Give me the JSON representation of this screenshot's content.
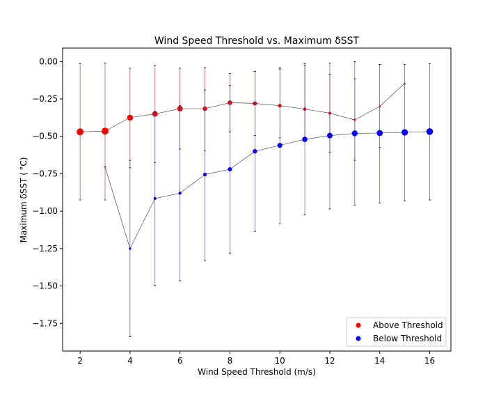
{
  "chart_data": {
    "type": "scatter",
    "title": "Wind Speed Threshold vs. Maximum δSST",
    "xlabel": "Wind Speed Threshold (m/s)",
    "ylabel": "Maximum δSST ( °C)",
    "xlim": [
      1.3,
      16.85
    ],
    "ylim": [
      -1.935,
      0.09
    ],
    "xticks": [
      2,
      4,
      6,
      8,
      10,
      12,
      14,
      16
    ],
    "yticks": [
      0.0,
      -0.25,
      -0.5,
      -0.75,
      -1.0,
      -1.25,
      -1.5,
      -1.75
    ],
    "xtick_labels": [
      "2",
      "4",
      "6",
      "8",
      "10",
      "12",
      "14",
      "16"
    ],
    "ytick_labels": [
      "0.00",
      "−0.25",
      "−0.50",
      "−0.75",
      "−1.00",
      "−1.25",
      "−1.50",
      "−1.75"
    ],
    "grid": false,
    "legend_position": "lower-right",
    "series": [
      {
        "name": "Above Threshold",
        "color": "#ff0000",
        "errorbar_color": "#b02020",
        "x": [
          2,
          3,
          4,
          5,
          6,
          7,
          8,
          9,
          10,
          11,
          12,
          13,
          14,
          15
        ],
        "y": [
          -0.47,
          -0.465,
          -0.375,
          -0.35,
          -0.315,
          -0.315,
          -0.275,
          -0.28,
          -0.295,
          -0.318,
          -0.345,
          -0.39,
          -0.3,
          -0.145
        ],
        "err_low": [
          -0.925,
          -0.925,
          -0.71,
          -0.675,
          -0.585,
          -0.595,
          -0.47,
          -0.495,
          -0.51,
          -0.525,
          -0.605,
          -0.66,
          -0.575,
          -0.15
        ],
        "err_high": [
          -0.015,
          -0.01,
          -0.045,
          -0.025,
          -0.045,
          -0.04,
          -0.08,
          -0.065,
          -0.05,
          -0.025,
          -0.085,
          -0.115,
          -0.02,
          -0.15
        ],
        "marker_size": [
          5,
          5,
          4.2,
          4,
          4,
          3.3,
          3.3,
          3,
          2.6,
          2.4,
          2,
          1.6,
          1.3,
          0.8
        ]
      },
      {
        "name": "Below Threshold",
        "color": "#0000ff",
        "errorbar_color": "#3030b0",
        "x": [
          3,
          4,
          5,
          6,
          7,
          8,
          9,
          10,
          11,
          12,
          13,
          14,
          15,
          16
        ],
        "y": [
          -0.705,
          -1.25,
          -0.915,
          -0.88,
          -0.755,
          -0.72,
          -0.6,
          -0.56,
          -0.52,
          -0.495,
          -0.48,
          -0.478,
          -0.473,
          -0.468
        ],
        "err_low": [
          -0.705,
          -1.84,
          -1.495,
          -1.465,
          -1.33,
          -1.28,
          -1.135,
          -1.085,
          -1.025,
          -0.985,
          -0.96,
          -0.945,
          -0.93,
          -0.925
        ],
        "err_high": [
          -0.705,
          -0.66,
          -0.335,
          -0.295,
          -0.19,
          -0.16,
          -0.065,
          -0.04,
          -0.015,
          -0.01,
          0.0,
          -0.02,
          -0.02,
          -0.015
        ],
        "marker_size": [
          0.8,
          1.6,
          2,
          2.2,
          2.6,
          3,
          3.2,
          3.5,
          3.8,
          4,
          4.2,
          4.4,
          4.6,
          4.8
        ]
      }
    ]
  }
}
